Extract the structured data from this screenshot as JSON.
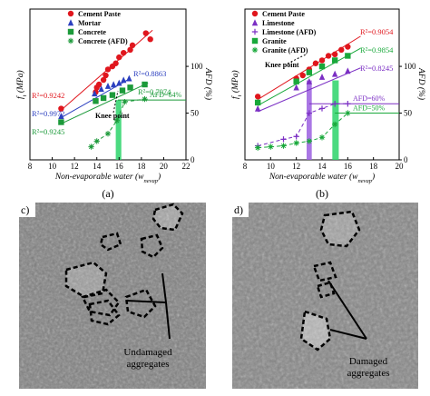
{
  "colors": {
    "cement": "#e0161d",
    "mortar": "#2b3fbf",
    "concrete": "#1c9a3a",
    "limestone": "#7b2fc4",
    "granite": "#18a83a",
    "afd_fill": "#2bd36a",
    "lime_fill": "#9b5fe0"
  },
  "panels": {
    "a": "(a)",
    "b": "(b)",
    "c": "c)",
    "d": "d)"
  },
  "photo_c_annotation": [
    "Undamaged",
    "aggregates"
  ],
  "photo_d_annotation": [
    "Damaged",
    "aggregates"
  ],
  "chart_data": [
    {
      "type": "scatter",
      "panel": "(a)",
      "xlabel": "Non-evaporable water (w",
      "xlabel_sub": "nevap",
      "xlabel_end": ")",
      "ylabel_left": "f",
      "ylabel_left_sub": "t",
      "ylabel_left_unit": " (MPa)",
      "ylabel_right": "AFD (%)",
      "xlim": [
        8,
        22
      ],
      "xticks": [
        8,
        10,
        12,
        14,
        16,
        18,
        20,
        22
      ],
      "ylim_right": [
        0,
        100
      ],
      "yticks_right": [
        0,
        50,
        100
      ],
      "series": [
        {
          "name": "Cement Paste",
          "marker": "circle",
          "color": "#e0161d",
          "points": [
            [
              10.8,
              3.4
            ],
            [
              13.9,
              4.5
            ],
            [
              14.0,
              4.8
            ],
            [
              14.2,
              5.0
            ],
            [
              14.6,
              5.3
            ],
            [
              14.8,
              5.6
            ],
            [
              15.0,
              6.0
            ],
            [
              15.4,
              6.2
            ],
            [
              15.7,
              6.4
            ],
            [
              16.0,
              6.8
            ],
            [
              16.4,
              7.1
            ],
            [
              17.0,
              7.3
            ],
            [
              17.2,
              7.6
            ],
            [
              18.4,
              8.4
            ],
            [
              18.8,
              8.0
            ]
          ],
          "fit": [
            [
              10.8,
              3.3
            ],
            [
              19.0,
              8.6
            ]
          ],
          "r2": "R²=0.9242"
        },
        {
          "name": "Mortar",
          "marker": "triangle",
          "color": "#2b3fbf",
          "points": [
            [
              10.8,
              2.9
            ],
            [
              13.8,
              4.4
            ],
            [
              14.4,
              4.7
            ],
            [
              15.0,
              4.9
            ],
            [
              15.5,
              5.0
            ],
            [
              16.0,
              5.1
            ],
            [
              16.4,
              5.3
            ],
            [
              16.9,
              5.4
            ]
          ],
          "fit": [
            [
              10.8,
              2.8
            ],
            [
              17.0,
              5.4
            ]
          ],
          "r2": "R²=0.8863",
          "r2b": "R²=0.9972"
        },
        {
          "name": "Concrete",
          "marker": "square",
          "color": "#1c9a3a",
          "points": [
            [
              10.8,
              2.5
            ],
            [
              13.9,
              3.9
            ],
            [
              14.6,
              4.1
            ],
            [
              15.4,
              4.3
            ],
            [
              16.3,
              4.6
            ],
            [
              17.0,
              4.8
            ],
            [
              18.3,
              5.0
            ]
          ],
          "fit": [
            [
              10.8,
              2.4
            ],
            [
              18.6,
              5.1
            ]
          ],
          "r2": "R²=0.7974",
          "r2b": "R²=0.9245"
        },
        {
          "name": "Concrete (AFD)",
          "marker": "star",
          "color": "#1c9a3a",
          "axis": "right",
          "points": [
            [
              13.5,
              14
            ],
            [
              14.0,
              20
            ],
            [
              15.0,
              28
            ],
            [
              15.8,
              42
            ],
            [
              16.5,
              62
            ],
            [
              18.3,
              65
            ]
          ]
        }
      ],
      "annotations": [
        "Knee point",
        "AFD=64%"
      ],
      "afd_band_x": [
        15.7,
        16.2
      ],
      "afd_line_y": 64
    },
    {
      "type": "scatter",
      "panel": "(b)",
      "xlabel": "Non-evaporable water (w",
      "xlabel_sub": "nevap",
      "xlabel_end": ")",
      "ylabel_left": "f",
      "ylabel_left_sub": "t",
      "ylabel_left_unit": " (MPa)",
      "ylabel_right": "AFD (%)",
      "xlim": [
        8,
        20
      ],
      "xticks": [
        8,
        10,
        12,
        14,
        16,
        18,
        20
      ],
      "ylim_right": [
        0,
        100
      ],
      "yticks_right": [
        0,
        50,
        100
      ],
      "series": [
        {
          "name": "Cement Paste",
          "marker": "circle",
          "color": "#e0161d",
          "points": [
            [
              9.0,
              4.2
            ],
            [
              12.0,
              5.4
            ],
            [
              12.5,
              5.6
            ],
            [
              13.0,
              6.0
            ],
            [
              13.5,
              6.4
            ],
            [
              14.0,
              6.6
            ],
            [
              14.5,
              6.9
            ],
            [
              15.0,
              7.0
            ],
            [
              15.5,
              7.3
            ],
            [
              16.0,
              7.5
            ]
          ],
          "fit": [
            [
              9.0,
              4.0
            ],
            [
              17.0,
              8.2
            ]
          ],
          "r2": "R²=0.9054"
        },
        {
          "name": "Limestone",
          "marker": "triangle",
          "color": "#7b2fc4",
          "points": [
            [
              9.0,
              3.4
            ],
            [
              12.0,
              4.8
            ],
            [
              13.0,
              5.2
            ],
            [
              14.0,
              5.5
            ],
            [
              15.0,
              5.7
            ],
            [
              16.0,
              5.9
            ]
          ],
          "fit": [
            [
              9.0,
              3.2
            ],
            [
              17.0,
              6.1
            ]
          ],
          "r2": "R²=0.8245"
        },
        {
          "name": "Limestone (AFD)",
          "marker": "plus",
          "color": "#7b2fc4",
          "axis": "right",
          "points": [
            [
              9.0,
              15
            ],
            [
              11.0,
              22
            ],
            [
              12.0,
              25
            ],
            [
              13.0,
              50
            ],
            [
              14.0,
              55
            ],
            [
              15.0,
              60
            ],
            [
              16.0,
              60
            ]
          ]
        },
        {
          "name": "Granite",
          "marker": "square",
          "color": "#18a83a",
          "points": [
            [
              9.0,
              3.8
            ],
            [
              12.0,
              5.2
            ],
            [
              13.0,
              5.8
            ],
            [
              14.0,
              6.2
            ],
            [
              15.0,
              6.6
            ],
            [
              16.0,
              6.9
            ]
          ],
          "fit": [
            [
              9.0,
              3.6
            ],
            [
              17.0,
              7.4
            ]
          ],
          "r2": "R²=0.9854"
        },
        {
          "name": "Granite (AFD)",
          "marker": "star",
          "color": "#18a83a",
          "axis": "right",
          "points": [
            [
              9.0,
              13
            ],
            [
              10.0,
              14
            ],
            [
              11.0,
              15
            ],
            [
              12.0,
              18
            ],
            [
              13.0,
              20
            ],
            [
              14.0,
              24
            ],
            [
              15.0,
              38
            ],
            [
              16.0,
              50
            ]
          ]
        }
      ],
      "annotations": [
        "Knee point",
        "AFD=60%",
        "AFD=50%"
      ],
      "afd_band_lime_x": [
        12.8,
        13.2
      ],
      "afd_band_granite_x": [
        14.8,
        15.3
      ],
      "afd_line_lime_y": 60,
      "afd_line_granite_y": 50
    }
  ]
}
